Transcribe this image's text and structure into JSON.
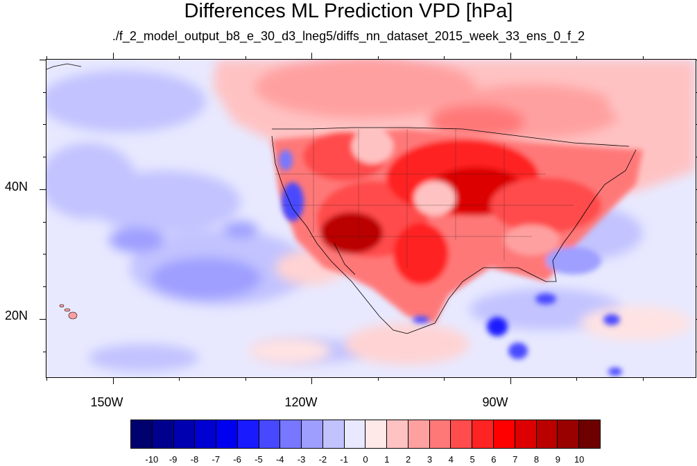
{
  "title": "Differences ML Prediction VPD [hPa]",
  "subtitle": "./f_2_model_output_b8_e_30_d3_lneg5/diffs_nn_dataset_2015_week_33_ens_0_f_2",
  "map": {
    "lon_range": [
      -160,
      -62
    ],
    "lat_range": [
      11,
      60
    ],
    "lat_labels": [
      {
        "lat": 40,
        "text": "40N"
      },
      {
        "lat": 20,
        "text": "20N"
      }
    ],
    "lon_labels": [
      {
        "lon": -150,
        "text": "150W"
      },
      {
        "lon": -120,
        "text": "120W"
      },
      {
        "lon": -90,
        "text": "90W"
      }
    ]
  },
  "colorbar": {
    "labels": [
      "-10",
      "-9",
      "-8",
      "-7",
      "-6",
      "-5",
      "-4",
      "-3",
      "-2",
      "-1",
      "0",
      "1",
      "2",
      "3",
      "4",
      "5",
      "6",
      "7",
      "8",
      "9",
      "10"
    ],
    "colors": [
      "#00006e",
      "#00008f",
      "#0000b0",
      "#0000d2",
      "#0000f0",
      "#1a1aff",
      "#4848ff",
      "#7777ff",
      "#9e9eff",
      "#c2c2ff",
      "#e8e8ff",
      "#ffe8e8",
      "#ffc2c2",
      "#ffa0a0",
      "#ff7878",
      "#ff4c4c",
      "#ff2424",
      "#ff0000",
      "#dd0000",
      "#bb0000",
      "#990000",
      "#6e0000"
    ]
  },
  "colors": {
    "ocean_base": "#e8e9ff",
    "coastline": "#000000"
  }
}
